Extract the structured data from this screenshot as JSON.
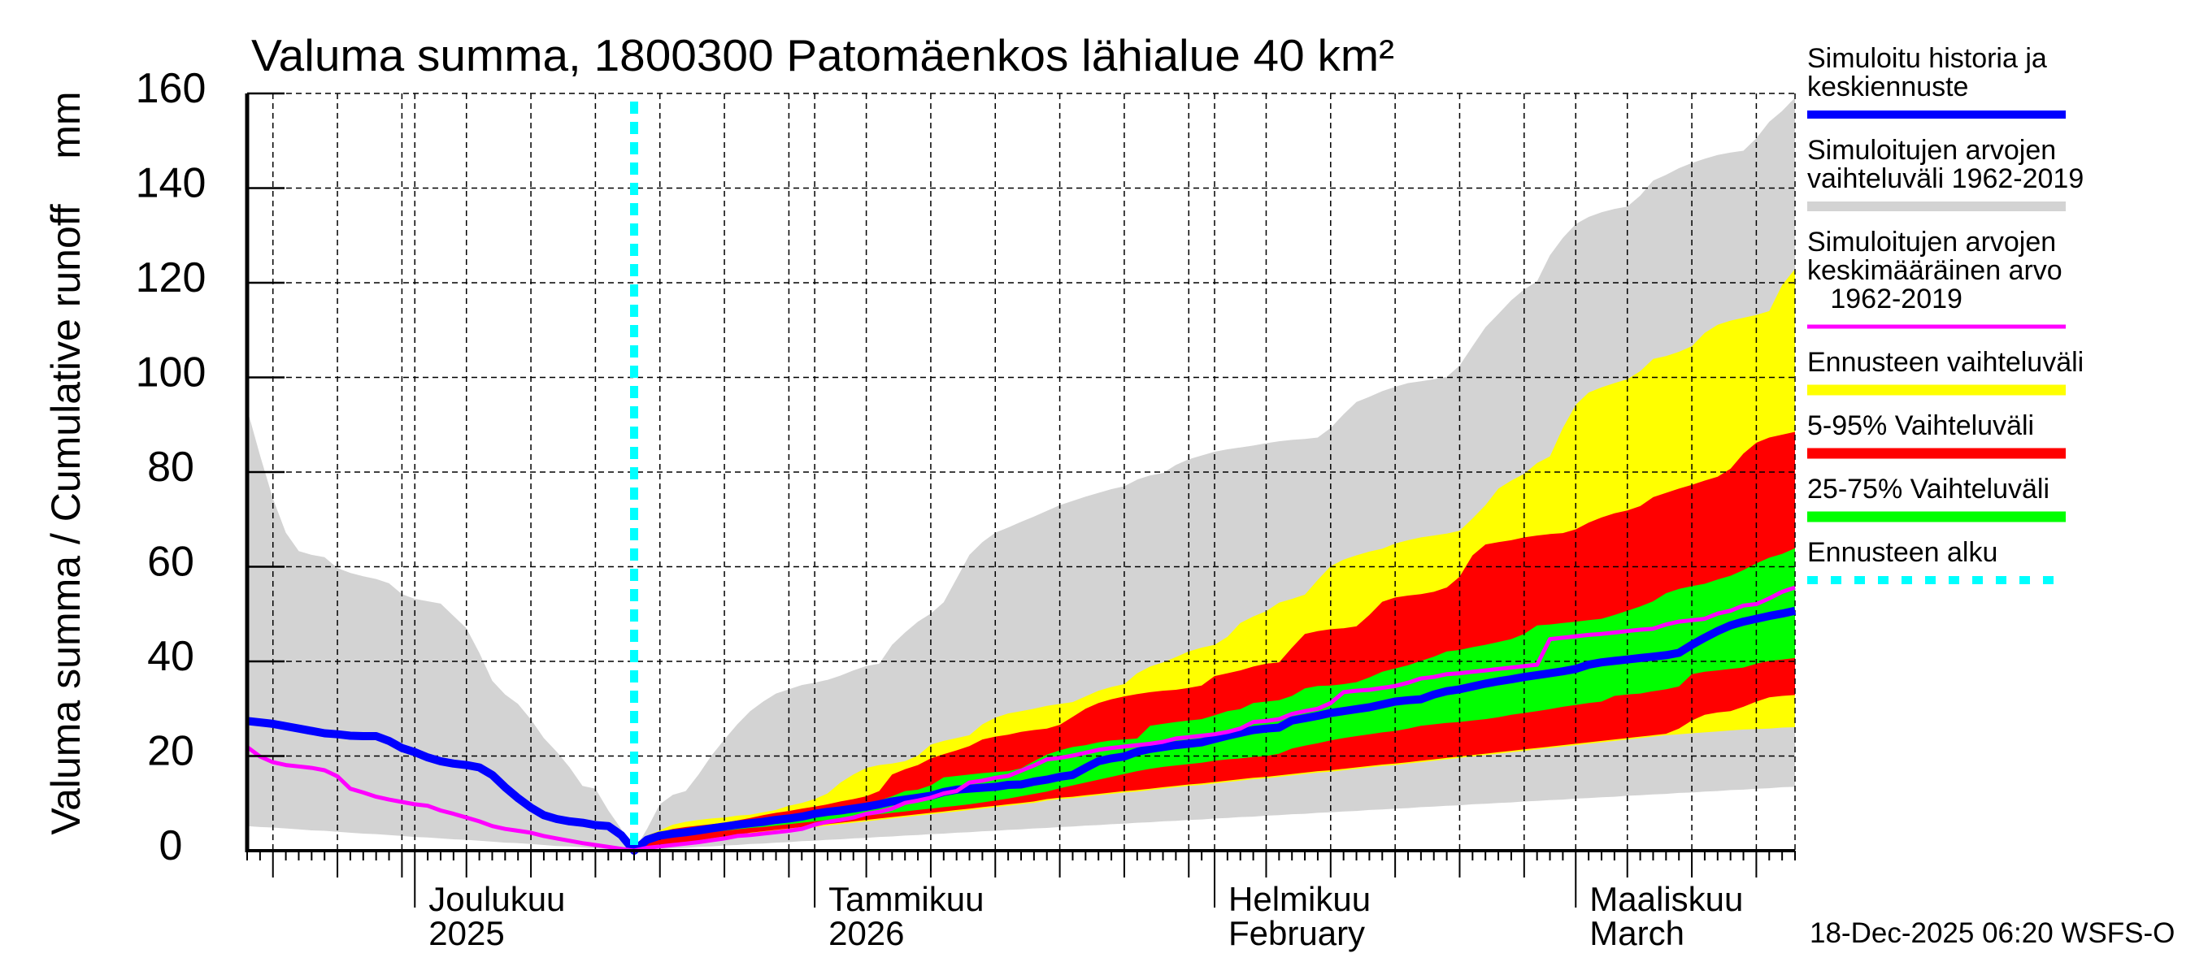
{
  "timestamp": "18-Dec-2025 06:20 WSFS-O",
  "chart_data": {
    "type": "area",
    "title": "Valuma summa, 1800300 Patomäenkos lähialue 40 km²",
    "xlabel": "",
    "ylabel": "Valuma summa / Cumulative runoff    mm",
    "ylim": [
      0,
      160
    ],
    "yticks": [
      0,
      20,
      40,
      60,
      80,
      100,
      120,
      140,
      160
    ],
    "x_range": [
      "2025-11-18",
      "2026-03-18"
    ],
    "x_tick_labels": [
      {
        "date": "2025-12-01",
        "lines": [
          "Joulukuu",
          "2025"
        ]
      },
      {
        "date": "2026-01-01",
        "lines": [
          "Tammikuu",
          "2026"
        ]
      },
      {
        "date": "2026-02-01",
        "lines": [
          "Helmikuu",
          "February"
        ]
      },
      {
        "date": "2026-03-01",
        "lines": [
          "Maaliskuu",
          "March"
        ]
      }
    ],
    "grid": true,
    "legend_position": "right",
    "series": [
      {
        "key": "history_median",
        "type": "line",
        "color": "#0000ff",
        "start": "2025-11-18",
        "label_lines": [
          "Simuloitu historia ja",
          "keskiennuste"
        ],
        "values": [
          27.4,
          27.1,
          26.8,
          26.3,
          25.8,
          25.3,
          24.8,
          24.6,
          24.3,
          24.2,
          24.2,
          23.2,
          21.7,
          20.8,
          19.7,
          18.9,
          18.4,
          18.1,
          17.6,
          16.0,
          13.4,
          11.1,
          9.1,
          7.5,
          6.7,
          6.2,
          5.9,
          5.4,
          5.2,
          3.3,
          0,
          2.3,
          3.2,
          3.6,
          3.9,
          4.3,
          4.7,
          5.1,
          5.5,
          5.8,
          6.1,
          6.5,
          6.8,
          7.2,
          7.8,
          8.2,
          8.5,
          8.9,
          9.3,
          9.8,
          10.4,
          10.8,
          11.2,
          11.6,
          12.4,
          12.9,
          13.1,
          13.3,
          13.5,
          13.9,
          14.0,
          14.6,
          15.0,
          15.6,
          16.0,
          17.5,
          18.9,
          19.5,
          19.9,
          20.9,
          21.5,
          21.9,
          22.3,
          22.6,
          22.9,
          23.6,
          24.3,
          24.9,
          25.5,
          25.8,
          26.0,
          27.5,
          28.0,
          28.5,
          29.1,
          29.5,
          29.9,
          30.3,
          30.9,
          31.5,
          31.8,
          32.0,
          33.0,
          33.7,
          34.1,
          34.7,
          35.3,
          35.8,
          36.2,
          36.7,
          37.1,
          37.5,
          37.9,
          38.4,
          39.3,
          39.8,
          40.1,
          40.4,
          40.7,
          41.0,
          41.3,
          41.8,
          43.5,
          45.0,
          46.4,
          47.6,
          48.4,
          49.0,
          49.6,
          50.1,
          50.7
        ]
      },
      {
        "key": "sim_range",
        "type": "band",
        "color": "#d3d3d3",
        "start": "2025-11-18",
        "label_lines": [
          "Simuloitujen arvojen",
          "vaihteluväli 1962-2019"
        ],
        "upper": [
          93.3,
          83.5,
          74.4,
          67.2,
          63.3,
          62.5,
          62.0,
          59.7,
          58.7,
          58.0,
          57.4,
          56.5,
          54.2,
          53.2,
          52.7,
          52.2,
          49.6,
          47.0,
          41.8,
          35.9,
          33.0,
          31.0,
          27.7,
          23.8,
          20.9,
          17.6,
          13.7,
          13.1,
          8.5,
          4.6,
          0,
          4.6,
          9.8,
          11.8,
          12.6,
          16.1,
          20.1,
          23.5,
          26.7,
          29.5,
          31.5,
          33.2,
          34.1,
          35.0,
          35.5,
          36.1,
          37.0,
          38.1,
          39.0,
          39.5,
          43.5,
          46.1,
          48.4,
          50.1,
          52.5,
          57.5,
          62.5,
          65.2,
          67.2,
          68.3,
          69.5,
          70.6,
          71.8,
          73.0,
          73.9,
          74.8,
          75.6,
          76.4,
          77.0,
          78.4,
          79.3,
          79.8,
          81.5,
          82.7,
          83.5,
          84.3,
          84.8,
          85.2,
          85.6,
          86.1,
          86.5,
          86.8,
          87.0,
          87.3,
          89.3,
          92.2,
          94.8,
          95.9,
          97.1,
          98.0,
          98.8,
          99.2,
          99.6,
          100.1,
          102.5,
          106.6,
          110.6,
          113.4,
          116.3,
          118.6,
          120.3,
          125.8,
          129.5,
          132.4,
          133.9,
          134.9,
          135.6,
          136.1,
          138.4,
          141.6,
          142.8,
          144.2,
          145.3,
          146.2,
          147.0,
          147.5,
          147.9,
          150.5,
          154.0,
          156.3,
          159.1
        ],
        "lower": [
          5.2,
          5.0,
          4.9,
          4.7,
          4.5,
          4.3,
          4.2,
          4.0,
          3.8,
          3.6,
          3.5,
          3.3,
          3.1,
          2.9,
          2.8,
          2.6,
          2.4,
          2.3,
          2.1,
          1.9,
          1.7,
          1.6,
          1.4,
          1.2,
          1.0,
          0.9,
          0.7,
          0.5,
          0.3,
          0.2,
          0,
          0.2,
          0.3,
          0.5,
          0.6,
          0.8,
          0.9,
          1.1,
          1.2,
          1.4,
          1.5,
          1.7,
          1.8,
          2.0,
          2.1,
          2.3,
          2.4,
          2.6,
          2.7,
          2.9,
          3.0,
          3.2,
          3.3,
          3.5,
          3.6,
          3.8,
          3.9,
          4.1,
          4.2,
          4.4,
          4.5,
          4.7,
          4.8,
          5.0,
          5.1,
          5.3,
          5.4,
          5.6,
          5.7,
          5.9,
          6.0,
          6.2,
          6.3,
          6.5,
          6.6,
          6.8,
          6.9,
          7.1,
          7.2,
          7.4,
          7.5,
          7.7,
          7.8,
          8.0,
          8.1,
          8.3,
          8.4,
          8.6,
          8.7,
          8.9,
          9.0,
          9.2,
          9.3,
          9.5,
          9.6,
          9.8,
          9.9,
          10.1,
          10.2,
          10.4,
          10.5,
          10.7,
          10.8,
          11.0,
          11.1,
          11.3,
          11.4,
          11.6,
          11.7,
          11.9,
          12.0,
          12.2,
          12.3,
          12.5,
          12.6,
          12.8,
          12.9,
          13.1,
          13.2,
          13.4,
          13.5
        ]
      },
      {
        "key": "sim_mean",
        "type": "line",
        "color": "#ff00ff",
        "start": "2025-11-18",
        "label_lines": [
          "Simuloitujen arvojen",
          "keskimääräinen arvo",
          "   1962-2019"
        ],
        "values": [
          21.9,
          19.9,
          18.7,
          18.1,
          17.8,
          17.5,
          17.0,
          15.7,
          13.1,
          12.3,
          11.4,
          10.8,
          10.3,
          9.8,
          9.5,
          8.5,
          7.8,
          7.0,
          6.2,
          5.2,
          4.6,
          4.2,
          3.8,
          3.1,
          2.6,
          2.1,
          1.6,
          1.2,
          0.8,
          0.4,
          0,
          0.6,
          0.9,
          1.2,
          1.5,
          1.8,
          2.2,
          2.6,
          3.1,
          3.3,
          3.6,
          3.9,
          4.2,
          4.6,
          5.5,
          6.1,
          6.5,
          7.0,
          7.8,
          8.2,
          8.9,
          10.1,
          10.6,
          11.2,
          12.1,
          12.6,
          14.4,
          14.8,
          15.4,
          15.8,
          16.9,
          18.0,
          19.3,
          19.6,
          20.1,
          20.7,
          21.3,
          21.7,
          22.0,
          22.3,
          22.6,
          23.0,
          23.7,
          24.0,
          24.3,
          24.6,
          25.1,
          25.8,
          27.2,
          27.4,
          27.8,
          28.9,
          29.5,
          30.0,
          31.2,
          33.5,
          33.8,
          34.0,
          34.4,
          34.8,
          35.5,
          36.4,
          36.7,
          37.3,
          37.5,
          37.8,
          38.1,
          38.4,
          38.7,
          39.0,
          39.3,
          44.7,
          45.0,
          45.3,
          45.6,
          45.8,
          46.1,
          46.4,
          46.7,
          46.9,
          47.8,
          48.4,
          48.7,
          49.0,
          50.1,
          50.7,
          51.8,
          52.1,
          53.3,
          54.7,
          55.6
        ]
      },
      {
        "key": "fc_range",
        "type": "band",
        "color": "#ffff00",
        "start": "2025-12-18",
        "label_lines": [
          "Ennusteen vaihteluväli"
        ],
        "upper": [
          0,
          3.2,
          4.3,
          5.5,
          6.1,
          6.5,
          6.8,
          7.0,
          7.4,
          7.6,
          8.1,
          8.6,
          9.5,
          10.1,
          10.9,
          12.1,
          14.4,
          16.1,
          17.5,
          18.1,
          18.4,
          18.9,
          20.1,
          22.4,
          23.2,
          23.8,
          24.4,
          26.7,
          28.1,
          29.0,
          29.5,
          30.0,
          30.6,
          31.0,
          31.4,
          32.6,
          33.8,
          34.6,
          35.2,
          37.5,
          38.9,
          39.8,
          40.9,
          42.1,
          42.9,
          43.5,
          45.2,
          48.1,
          49.5,
          50.6,
          52.4,
          53.2,
          54.1,
          57.2,
          60.1,
          61.5,
          62.4,
          63.2,
          63.8,
          64.9,
          65.6,
          66.2,
          66.6,
          67.0,
          67.6,
          70.2,
          73.0,
          76.5,
          78.2,
          79.6,
          81.9,
          83.3,
          89.3,
          94.2,
          96.8,
          97.9,
          98.8,
          99.6,
          101.3,
          103.9,
          104.5,
          105.4,
          106.6,
          109.4,
          111.1,
          112.0,
          112.6,
          113.2,
          114.0,
          119.5,
          122.9
        ],
        "lower": [
          0,
          0.3,
          0.7,
          1.1,
          1.5,
          1.9,
          2.3,
          2.7,
          3.1,
          3.5,
          3.8,
          4.1,
          4.4,
          4.7,
          5.0,
          5.3,
          5.6,
          5.9,
          6.2,
          6.5,
          6.8,
          7.1,
          7.4,
          7.7,
          8.0,
          8.3,
          8.6,
          8.9,
          9.2,
          9.5,
          9.8,
          10.1,
          10.6,
          10.9,
          11.1,
          11.4,
          11.7,
          12.0,
          12.3,
          12.5,
          12.8,
          13.1,
          13.4,
          13.7,
          13.9,
          14.2,
          14.5,
          14.8,
          15.1,
          15.3,
          15.6,
          15.9,
          16.2,
          16.5,
          16.7,
          17.0,
          17.3,
          17.6,
          17.9,
          18.1,
          18.4,
          18.7,
          19.0,
          19.3,
          19.6,
          19.9,
          20.2,
          20.5,
          20.8,
          21.1,
          21.4,
          21.7,
          22.0,
          22.3,
          22.6,
          22.9,
          23.2,
          23.5,
          23.8,
          24.1,
          24.4,
          24.6,
          24.8,
          25.0,
          25.2,
          25.4,
          25.6,
          25.7,
          25.8,
          26.0,
          26.1
        ]
      },
      {
        "key": "p5_95",
        "type": "band",
        "color": "#ff0000",
        "start": "2025-12-18",
        "label_lines": [
          "5-95% Vaihteluväli"
        ],
        "upper": [
          0,
          2.9,
          3.9,
          4.6,
          5.0,
          5.3,
          5.6,
          5.9,
          6.4,
          6.9,
          7.5,
          8.0,
          8.4,
          8.9,
          9.3,
          9.8,
          10.4,
          10.9,
          11.5,
          12.6,
          16.1,
          17.2,
          18.1,
          19.5,
          20.4,
          21.2,
          22.1,
          23.5,
          24.1,
          24.5,
          25.1,
          25.5,
          25.8,
          26.6,
          28.3,
          30.0,
          31.2,
          32.0,
          32.6,
          33.1,
          33.5,
          33.8,
          34.0,
          34.4,
          34.9,
          36.9,
          37.5,
          38.1,
          38.9,
          39.5,
          39.8,
          42.9,
          45.8,
          46.4,
          46.8,
          47.0,
          47.4,
          49.8,
          52.6,
          53.5,
          53.9,
          54.2,
          54.7,
          55.6,
          57.9,
          62.4,
          64.7,
          65.2,
          65.6,
          66.2,
          66.6,
          66.9,
          67.1,
          67.9,
          69.3,
          70.4,
          71.3,
          71.9,
          72.8,
          74.7,
          75.6,
          76.5,
          77.3,
          78.2,
          79.0,
          80.7,
          83.9,
          86.2,
          87.3,
          87.9,
          88.5
        ],
        "lower": [
          0,
          0.5,
          1.0,
          1.4,
          1.8,
          2.2,
          2.6,
          3.0,
          3.4,
          3.8,
          4.1,
          4.4,
          4.7,
          5.0,
          5.3,
          5.6,
          5.9,
          6.2,
          6.5,
          6.8,
          7.1,
          7.4,
          7.7,
          8.0,
          8.3,
          8.6,
          8.9,
          9.2,
          9.5,
          9.8,
          10.1,
          10.4,
          10.9,
          11.2,
          11.4,
          11.7,
          12.0,
          12.3,
          12.6,
          12.8,
          13.1,
          13.4,
          13.7,
          14.0,
          14.2,
          14.5,
          14.8,
          15.1,
          15.4,
          15.6,
          15.9,
          16.2,
          16.5,
          16.8,
          17.0,
          17.3,
          17.6,
          17.9,
          18.2,
          18.4,
          18.7,
          19.0,
          19.3,
          19.6,
          19.9,
          20.2,
          20.5,
          20.8,
          21.1,
          21.4,
          21.7,
          22.0,
          22.3,
          22.6,
          22.9,
          23.2,
          23.5,
          23.8,
          24.1,
          24.4,
          24.7,
          25.8,
          27.5,
          28.7,
          29.2,
          29.5,
          30.4,
          31.5,
          32.4,
          32.7,
          32.9
        ]
      },
      {
        "key": "p25_75",
        "type": "band",
        "color": "#00ff00",
        "start": "2025-12-18",
        "label_lines": [
          "25-75% Vaihteluväli"
        ],
        "upper": [
          0,
          2.6,
          3.6,
          4.1,
          4.4,
          4.8,
          5.2,
          5.6,
          6.0,
          6.3,
          6.6,
          7.0,
          7.4,
          7.8,
          8.4,
          8.6,
          8.9,
          9.3,
          9.8,
          10.6,
          11.5,
          12.6,
          12.9,
          13.8,
          15.5,
          15.8,
          16.1,
          16.4,
          16.6,
          16.8,
          17.4,
          18.9,
          20.3,
          21.2,
          21.9,
          22.3,
          22.9,
          23.3,
          23.5,
          23.7,
          26.4,
          26.8,
          27.2,
          27.5,
          27.8,
          28.6,
          29.5,
          29.9,
          31.2,
          31.5,
          31.8,
          32.7,
          34.3,
          34.8,
          34.9,
          35.2,
          35.6,
          36.6,
          37.8,
          38.5,
          39.2,
          40.1,
          41.0,
          42.1,
          42.4,
          43.0,
          43.5,
          44.1,
          44.7,
          45.8,
          47.6,
          47.8,
          48.1,
          48.4,
          48.7,
          49.0,
          49.8,
          50.7,
          51.6,
          52.7,
          54.4,
          55.3,
          55.9,
          56.4,
          57.3,
          58.1,
          59.3,
          60.7,
          61.9,
          62.7,
          63.9
        ],
        "lower": [
          0,
          1.8,
          2.6,
          3.0,
          3.3,
          3.6,
          3.9,
          4.2,
          4.5,
          4.8,
          5.0,
          5.3,
          5.6,
          5.9,
          6.2,
          6.5,
          6.8,
          7.1,
          7.4,
          7.7,
          8.0,
          8.3,
          8.6,
          8.9,
          9.2,
          9.5,
          9.8,
          10.2,
          10.6,
          11.0,
          11.5,
          12.0,
          12.5,
          13.2,
          13.8,
          14.4,
          15.0,
          15.6,
          16.2,
          16.8,
          17.3,
          17.7,
          18.0,
          18.3,
          18.6,
          19.0,
          19.3,
          19.5,
          19.8,
          20.0,
          20.5,
          21.6,
          22.2,
          22.7,
          23.3,
          23.8,
          24.2,
          24.6,
          25.0,
          25.3,
          25.8,
          26.4,
          26.7,
          27.0,
          27.2,
          27.5,
          27.8,
          28.2,
          28.7,
          29.1,
          29.5,
          29.9,
          30.4,
          30.8,
          31.2,
          31.5,
          32.7,
          33.0,
          33.2,
          33.7,
          34.1,
          34.7,
          37.3,
          37.8,
          38.1,
          38.4,
          38.7,
          39.5,
          40.1,
          40.4,
          40.7
        ]
      },
      {
        "key": "fc_start",
        "type": "vline",
        "color": "#00ffff",
        "date": "2025-12-18",
        "label_lines": [
          "Ennusteen alku"
        ]
      }
    ]
  }
}
